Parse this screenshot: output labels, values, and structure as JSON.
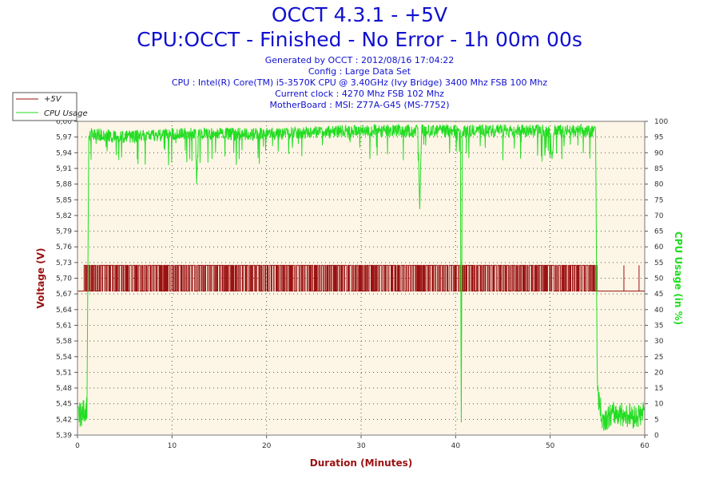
{
  "header": {
    "title": "OCCT 4.3.1 - +5V",
    "subtitle": "CPU:OCCT - Finished - No Error - 1h 00m 00s",
    "info_lines": [
      "Generated by OCCT : 2012/08/16 17:04:22",
      "Config : Large Data Set",
      "CPU : Intel(R) Core(TM) i5-3570K CPU @ 3.40GHz (Ivy Bridge) 3400 Mhz FSB 100 Mhz",
      "Current clock : 4270 Mhz FSB 102 Mhz",
      "MotherBoard : MSI: Z77A-G45 (MS-7752)"
    ]
  },
  "colors": {
    "voltage": "#9b1111",
    "cpu": "#22dd22",
    "plot_bg": "#fdf6e6",
    "title": "#1010d0"
  },
  "chart_data": {
    "type": "line",
    "xlabel": "Duration (Minutes)",
    "ylabel_left": "Voltage (V)",
    "ylabel_right": "CPU Usage (in %)",
    "xlim": [
      0,
      60
    ],
    "ylim_left": [
      5.39,
      6.0
    ],
    "ylim_right": [
      0,
      100
    ],
    "x_ticks": [
      0,
      10,
      20,
      30,
      40,
      50,
      60
    ],
    "y_left_ticks": [
      "6,00",
      "5,97",
      "5,94",
      "5,91",
      "5,88",
      "5,85",
      "5,82",
      "5,79",
      "5,76",
      "5,73",
      "5,70",
      "5,67",
      "5,64",
      "5,61",
      "5,58",
      "5,54",
      "5,51",
      "5,48",
      "5,45",
      "5,42",
      "5,39"
    ],
    "y_right_ticks": [
      100,
      95,
      90,
      85,
      80,
      75,
      70,
      65,
      60,
      55,
      50,
      45,
      40,
      35,
      30,
      25,
      20,
      15,
      10,
      5,
      0
    ],
    "grid": true,
    "legend": {
      "position": "top-left",
      "entries": [
        "+5V",
        "CPU Usage"
      ]
    },
    "series": [
      {
        "name": "+5V",
        "axis": "left",
        "low": 5.67,
        "high": 5.72,
        "x": [
          0,
          55,
          56,
          60
        ],
        "band_note": "fluctuates 5.67-5.72 between 0.7 and 55 min, then mostly 5.67"
      },
      {
        "name": "CPU Usage",
        "axis": "right",
        "x": [
          0,
          0.5,
          1,
          1.2,
          5,
          10,
          12.5,
          12.6,
          12.8,
          20,
          30,
          36,
          36.2,
          36.4,
          40.5,
          40.6,
          40.7,
          45,
          50,
          50.2,
          50.4,
          54.8,
          55,
          55.5,
          57,
          59,
          60
        ],
        "values": [
          2,
          3,
          5,
          98,
          97,
          98,
          98,
          80,
          98,
          98,
          99,
          99,
          72,
          99,
          99,
          0,
          99,
          99,
          99,
          88,
          99,
          99,
          10,
          1,
          3,
          2,
          3
        ]
      }
    ]
  }
}
